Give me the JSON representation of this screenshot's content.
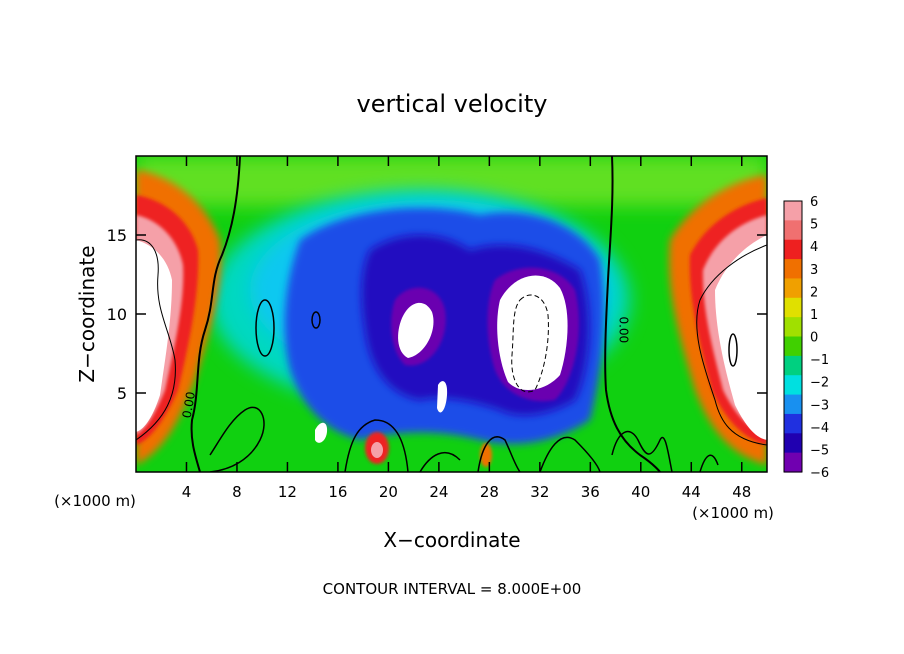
{
  "chart_data": {
    "type": "heatmap",
    "title": "vertical velocity",
    "xlabel": "X−coordinate",
    "ylabel": "Z−coordinate",
    "x_unit_label": "(×1000 m)",
    "y_unit_label": "(×1000 m)",
    "footer": "CONTOUR INTERVAL = 8.000E+00",
    "xlim": [
      0,
      50
    ],
    "ylim": [
      0,
      20
    ],
    "x_ticks": [
      4,
      8,
      12,
      16,
      20,
      24,
      28,
      32,
      36,
      40,
      44,
      48
    ],
    "y_ticks": [
      5,
      10,
      15
    ],
    "colorbar": {
      "range": [
        -6,
        6
      ],
      "ticks": [
        "6",
        "5",
        "4",
        "3",
        "2",
        "1",
        "0",
        "−1",
        "−2",
        "−3",
        "−4",
        "−5",
        "−6"
      ],
      "colors": [
        "#f5a0a8",
        "#f07070",
        "#ee2020",
        "#f07000",
        "#f0a000",
        "#e0e000",
        "#a0e000",
        "#40d000",
        "#00d080",
        "#00e0e0",
        "#1890f0",
        "#2030e0",
        "#2000b0",
        "#7000b0"
      ]
    },
    "contour_labels": [
      {
        "text": "0.00",
        "x": 4.5,
        "y": 4.2,
        "rotate": -80
      },
      {
        "text": "0.00",
        "x": 38.3,
        "y": 9.0,
        "rotate": 90
      }
    ],
    "field_note": "2D vertical velocity field; background near 0 (green), strong downdrafts (blue/purple/white below −6) at x ≈ 14–37, strong updrafts (red/pink/white above 6) near both lateral boundaries."
  }
}
